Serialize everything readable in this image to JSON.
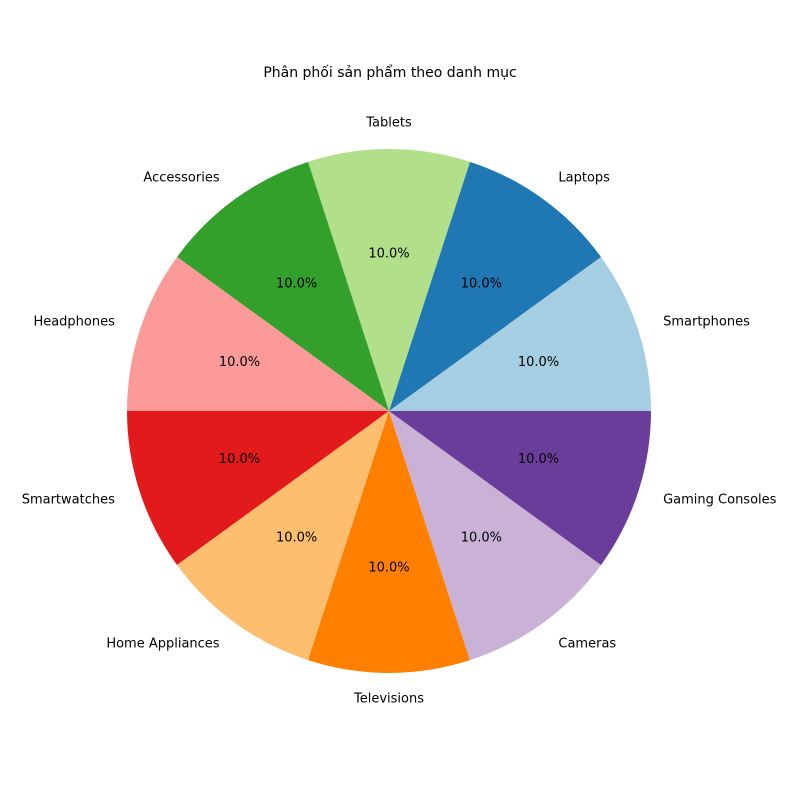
{
  "chart_data": {
    "type": "pie",
    "title": "Phân phối sản phẩm theo danh mục",
    "categories": [
      "Smartphones",
      "Laptops",
      "Tablets",
      "Accessories",
      "Headphones",
      "Smartwatches",
      "Home Appliances",
      "Televisions",
      "Cameras",
      "Gaming Consoles"
    ],
    "values": [
      10,
      10,
      10,
      10,
      10,
      10,
      10,
      10,
      10,
      10
    ],
    "percent_labels": [
      "10.0%",
      "10.0%",
      "10.0%",
      "10.0%",
      "10.0%",
      "10.0%",
      "10.0%",
      "10.0%",
      "10.0%",
      "10.0%"
    ],
    "colors": [
      "#a6cee3",
      "#1f78b4",
      "#b2df8a",
      "#33a02c",
      "#fb9a99",
      "#e31a1c",
      "#fdbf6f",
      "#ff7f00",
      "#cab2d6",
      "#6a3d9a"
    ],
    "start_angle_deg": 0,
    "direction": "counterclockwise",
    "legend": "none"
  }
}
